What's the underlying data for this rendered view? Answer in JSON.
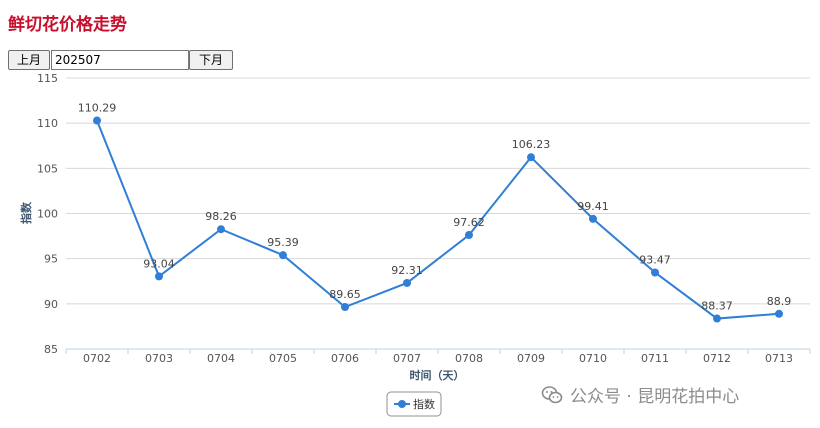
{
  "page": {
    "title": "鲜切花价格走势",
    "prev_label": "上月",
    "next_label": "下月",
    "month_value": "202507",
    "watermark_text": "公众号 · 昆明花拍中心",
    "watermark_icon": "wechat-icon"
  },
  "chart_data": {
    "type": "line",
    "categories": [
      "0702",
      "0703",
      "0704",
      "0705",
      "0706",
      "0707",
      "0708",
      "0709",
      "0710",
      "0711",
      "0712",
      "0713"
    ],
    "series": [
      {
        "name": "指数",
        "values": [
          110.29,
          93.04,
          98.26,
          95.39,
          89.65,
          92.31,
          97.62,
          106.23,
          99.41,
          93.47,
          88.37,
          88.9
        ],
        "color": "#2f7ed8"
      }
    ],
    "xlabel": "时间（天）",
    "ylabel": "指数",
    "ylim": [
      85,
      115
    ],
    "yticks": [
      85,
      90,
      95,
      100,
      105,
      110,
      115
    ],
    "grid": true,
    "legend": "bottom-center"
  }
}
